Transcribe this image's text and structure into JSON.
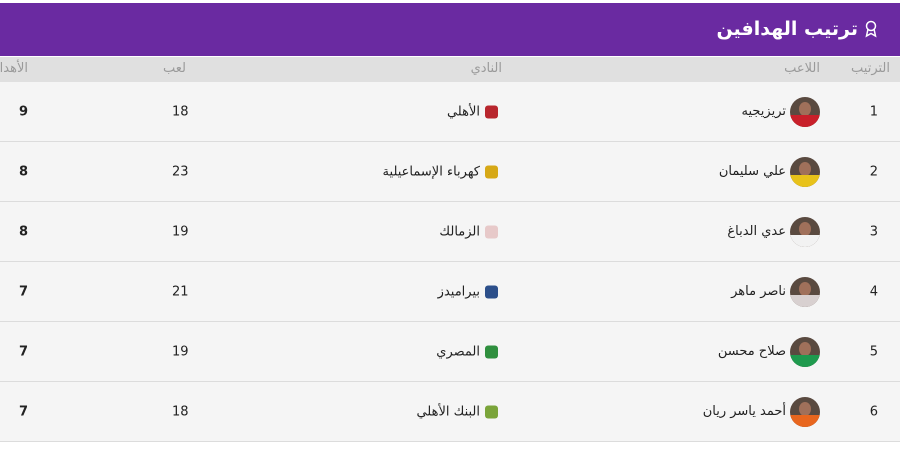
{
  "header": {
    "title": "ترتيب الهدافين",
    "icon": "medal-icon",
    "accent": "#6a2aa1"
  },
  "columns": {
    "rank": "الترتيب",
    "player": "اللاعب",
    "club": "النادي",
    "played": "لعب",
    "goals": "الأهداف"
  },
  "rows": [
    {
      "rank": "1",
      "player": "تريزيجيه",
      "club": "الأهلي",
      "played": "18",
      "goals": "9",
      "shirt": "#c8202a",
      "crest": "#b8262d"
    },
    {
      "rank": "2",
      "player": "علي سليمان",
      "club": "كهرباء الإسماعيلية",
      "played": "23",
      "goals": "8",
      "shirt": "#e8c21a",
      "crest": "#d6a816"
    },
    {
      "rank": "3",
      "player": "عدي الدباغ",
      "club": "الزمالك",
      "played": "19",
      "goals": "8",
      "shirt": "#f2f2f2",
      "crest": "#e7c9c9"
    },
    {
      "rank": "4",
      "player": "ناصر ماهر",
      "club": "بيراميدز",
      "played": "21",
      "goals": "7",
      "shirt": "#d8d0d0",
      "crest": "#2c4f8a"
    },
    {
      "rank": "5",
      "player": "صلاح محسن",
      "club": "المصري",
      "played": "19",
      "goals": "7",
      "shirt": "#1f9a4e",
      "crest": "#2f8f3e"
    },
    {
      "rank": "6",
      "player": "أحمد ياسر ريان",
      "club": "البنك الأهلي",
      "played": "18",
      "goals": "7",
      "shirt": "#e8661e",
      "crest": "#7aa43a"
    }
  ]
}
